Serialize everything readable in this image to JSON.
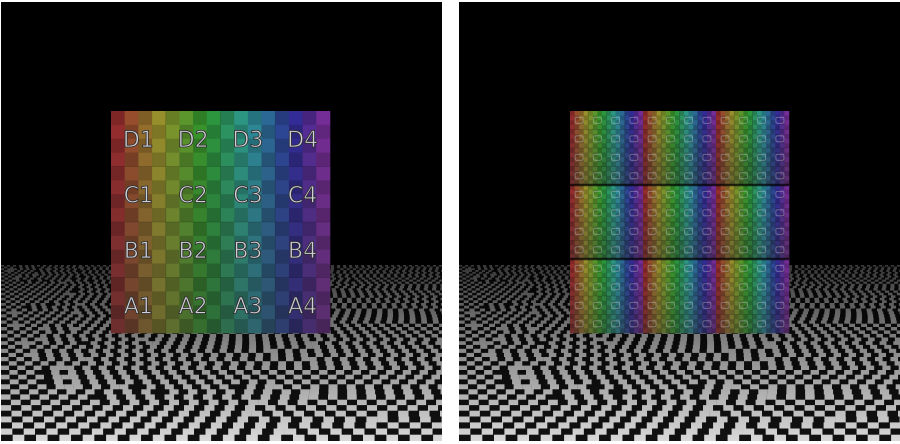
{
  "panels": [
    {
      "id": "left",
      "texture_repeat": 1,
      "row_labels": [
        [
          "D1",
          "D2",
          "D3",
          "D4"
        ],
        [
          "C1",
          "C2",
          "C3",
          "C4"
        ],
        [
          "B1",
          "B2",
          "B3",
          "B4"
        ],
        [
          "A1",
          "A2",
          "A3",
          "A4"
        ]
      ]
    },
    {
      "id": "right",
      "texture_repeat": 3
    }
  ],
  "colors": {
    "background": "#000000",
    "floor_light": "#d8d8d8",
    "floor_dark": "#111111",
    "label_fill": "#cfcfd8",
    "label_stroke": "#2a2a2a"
  }
}
